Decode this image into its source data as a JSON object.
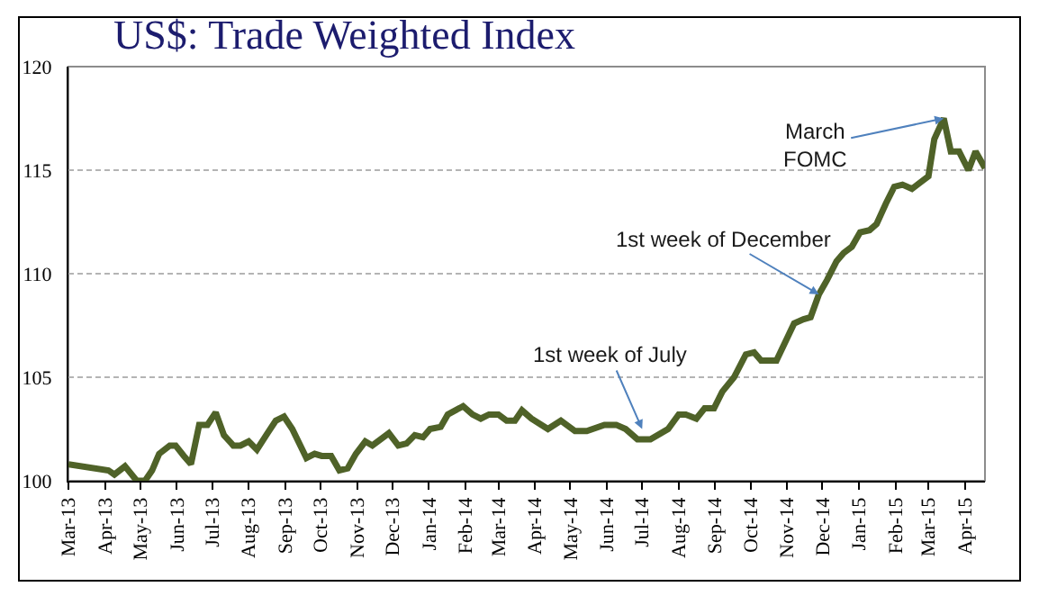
{
  "chart_data": {
    "type": "line",
    "title": "US$: Trade Weighted Index",
    "x": [
      "2013-03-01",
      "2013-04-04",
      "2013-04-09",
      "2013-04-18",
      "2013-04-28",
      "2013-05-05",
      "2013-05-11",
      "2013-05-17",
      "2013-05-26",
      "2013-05-31",
      "2013-06-07",
      "2013-06-13",
      "2013-06-20",
      "2013-06-27",
      "2013-07-04",
      "2013-07-11",
      "2013-07-19",
      "2013-07-25",
      "2013-08-01",
      "2013-08-08",
      "2013-08-17",
      "2013-08-24",
      "2013-08-31",
      "2013-09-07",
      "2013-09-19",
      "2013-09-26",
      "2013-10-02",
      "2013-10-10",
      "2013-10-17",
      "2013-10-24",
      "2013-10-31",
      "2013-11-08",
      "2013-11-14",
      "2013-11-28",
      "2013-12-06",
      "2013-12-13",
      "2013-12-20",
      "2013-12-27",
      "2014-01-02",
      "2014-01-11",
      "2014-01-17",
      "2014-01-30",
      "2014-02-07",
      "2014-02-14",
      "2014-02-21",
      "2014-03-01",
      "2014-03-08",
      "2014-03-15",
      "2014-03-21",
      "2014-03-29",
      "2014-04-12",
      "2014-04-23",
      "2014-05-05",
      "2014-05-15",
      "2014-05-30",
      "2014-06-09",
      "2014-06-17",
      "2014-06-27",
      "2014-07-08",
      "2014-07-23",
      "2014-08-01",
      "2014-08-07",
      "2014-08-16",
      "2014-08-23",
      "2014-08-31",
      "2014-09-07",
      "2014-09-17",
      "2014-09-27",
      "2014-10-04",
      "2014-10-10",
      "2014-10-23",
      "2014-11-07",
      "2014-11-15",
      "2014-11-21",
      "2014-11-28",
      "2014-12-05",
      "2014-12-13",
      "2014-12-19",
      "2014-12-26",
      "2015-01-02",
      "2015-01-10",
      "2015-01-16",
      "2015-01-24",
      "2015-01-31",
      "2015-02-07",
      "2015-02-15",
      "2015-02-22",
      "2015-03-01",
      "2015-03-06",
      "2015-03-14",
      "2015-03-20",
      "2015-03-27",
      "2015-04-04",
      "2015-04-10",
      "2015-04-18"
    ],
    "series": [
      {
        "color": "#4f6228",
        "values": [
          100.8,
          100.5,
          100.3,
          100.7,
          100.0,
          100.0,
          100.5,
          101.3,
          101.7,
          101.7,
          101.2,
          100.8,
          102.7,
          102.7,
          103.3,
          102.2,
          101.7,
          101.7,
          101.9,
          101.5,
          102.3,
          102.9,
          103.1,
          102.5,
          101.1,
          101.3,
          101.2,
          101.2,
          100.5,
          100.6,
          101.3,
          101.9,
          101.7,
          102.3,
          101.7,
          101.8,
          102.2,
          102.1,
          102.5,
          102.6,
          103.2,
          103.6,
          103.2,
          103.0,
          103.2,
          103.2,
          102.9,
          102.9,
          103.4,
          103.0,
          102.5,
          102.9,
          102.4,
          102.4,
          102.7,
          102.7,
          102.5,
          102.0,
          102.0,
          102.5,
          103.2,
          103.2,
          103.0,
          103.5,
          103.5,
          104.3,
          105.0,
          106.1,
          106.2,
          105.8,
          105.8,
          107.6,
          107.8,
          107.9,
          109.0,
          109.7,
          110.6,
          111.0,
          111.3,
          112.0,
          112.1,
          112.4,
          113.4,
          114.2,
          114.3,
          114.1,
          114.4,
          114.7,
          116.5,
          117.5,
          115.9,
          115.9,
          115.0,
          115.9,
          115.1
        ]
      }
    ],
    "xlim": [
      "2013-03-01",
      "2015-04-18"
    ],
    "xticks": [
      {
        "value": "2013-03-01",
        "label": "Mar-13"
      },
      {
        "value": "2013-04-01",
        "label": "Apr-13"
      },
      {
        "value": "2013-05-01",
        "label": "May-13"
      },
      {
        "value": "2013-06-01",
        "label": "Jun-13"
      },
      {
        "value": "2013-07-01",
        "label": "Jul-13"
      },
      {
        "value": "2013-08-01",
        "label": "Aug-13"
      },
      {
        "value": "2013-09-01",
        "label": "Sep-13"
      },
      {
        "value": "2013-10-01",
        "label": "Oct-13"
      },
      {
        "value": "2013-11-01",
        "label": "Nov-13"
      },
      {
        "value": "2013-12-01",
        "label": "Dec-13"
      },
      {
        "value": "2014-01-01",
        "label": "Jan-14"
      },
      {
        "value": "2014-02-01",
        "label": "Feb-14"
      },
      {
        "value": "2014-03-01",
        "label": "Mar-14"
      },
      {
        "value": "2014-04-01",
        "label": "Apr-14"
      },
      {
        "value": "2014-05-01",
        "label": "May-14"
      },
      {
        "value": "2014-06-01",
        "label": "Jun-14"
      },
      {
        "value": "2014-07-01",
        "label": "Jul-14"
      },
      {
        "value": "2014-08-01",
        "label": "Aug-14"
      },
      {
        "value": "2014-09-01",
        "label": "Sep-14"
      },
      {
        "value": "2014-10-01",
        "label": "Oct-14"
      },
      {
        "value": "2014-11-01",
        "label": "Nov-14"
      },
      {
        "value": "2014-12-01",
        "label": "Dec-14"
      },
      {
        "value": "2015-01-01",
        "label": "Jan-15"
      },
      {
        "value": "2015-02-01",
        "label": "Feb-15"
      },
      {
        "value": "2015-03-01",
        "label": "Mar-15"
      },
      {
        "value": "2015-04-01",
        "label": "Apr-15"
      }
    ],
    "ylim": [
      100,
      120
    ],
    "yticks": [
      100,
      105,
      110,
      115,
      120
    ],
    "grid": "y",
    "line_style": "solid",
    "annotations": [
      {
        "text": "1st week of July",
        "x": "2014-07-01",
        "y": 102.5
      },
      {
        "text": "1st week of December",
        "x": "2014-11-28",
        "y": 109.0
      },
      {
        "text": "March FOMC",
        "x": "2015-03-14",
        "y": 117.5
      }
    ]
  }
}
